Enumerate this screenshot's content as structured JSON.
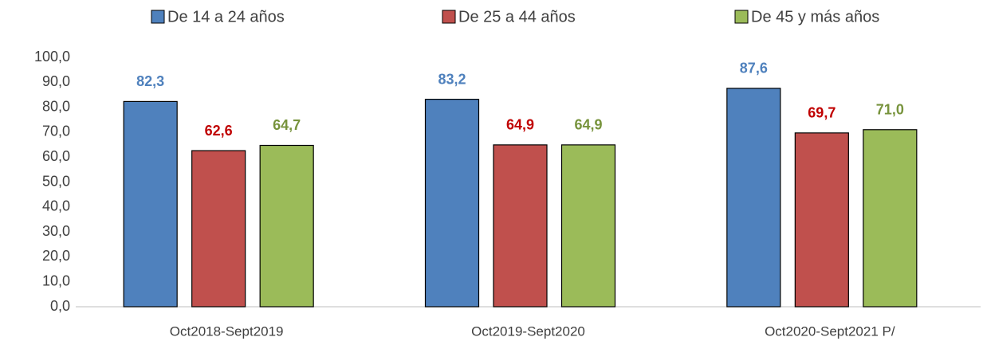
{
  "chart_data": {
    "type": "bar",
    "categories": [
      "Oct2018-Sept2019",
      "Oct2019-Sept2020",
      "Oct2020-Sept2021 P/"
    ],
    "series": [
      {
        "name": "De 14 a 24 años",
        "color": "#4f81bd",
        "label_color": "#4f81bd",
        "values": [
          82.3,
          83.2,
          87.6
        ],
        "value_labels": [
          "82,3",
          "83,2",
          "87,6"
        ]
      },
      {
        "name": "De 25 a 44 años",
        "color": "#c0504d",
        "label_color": "#c00000",
        "values": [
          62.6,
          64.9,
          69.7
        ],
        "value_labels": [
          "62,6",
          "64,9",
          "69,7"
        ]
      },
      {
        "name": "De 45 y más años",
        "color": "#9bbb59",
        "label_color": "#77933c",
        "values": [
          64.7,
          64.9,
          71.0
        ],
        "value_labels": [
          "64,7",
          "64,9",
          "71,0"
        ]
      }
    ],
    "ylim": [
      0,
      100
    ],
    "yticks": [
      {
        "value": 0,
        "label": "0,0"
      },
      {
        "value": 10,
        "label": "10,0"
      },
      {
        "value": 20,
        "label": "20,0"
      },
      {
        "value": 30,
        "label": "30,0"
      },
      {
        "value": 40,
        "label": "40,0"
      },
      {
        "value": 50,
        "label": "50,0"
      },
      {
        "value": 60,
        "label": "60,0"
      },
      {
        "value": 70,
        "label": "70,0"
      },
      {
        "value": 80,
        "label": "80,0"
      },
      {
        "value": 90,
        "label": "90,0"
      },
      {
        "value": 100,
        "label": "100,0"
      }
    ],
    "grid": false,
    "legend": "top"
  }
}
